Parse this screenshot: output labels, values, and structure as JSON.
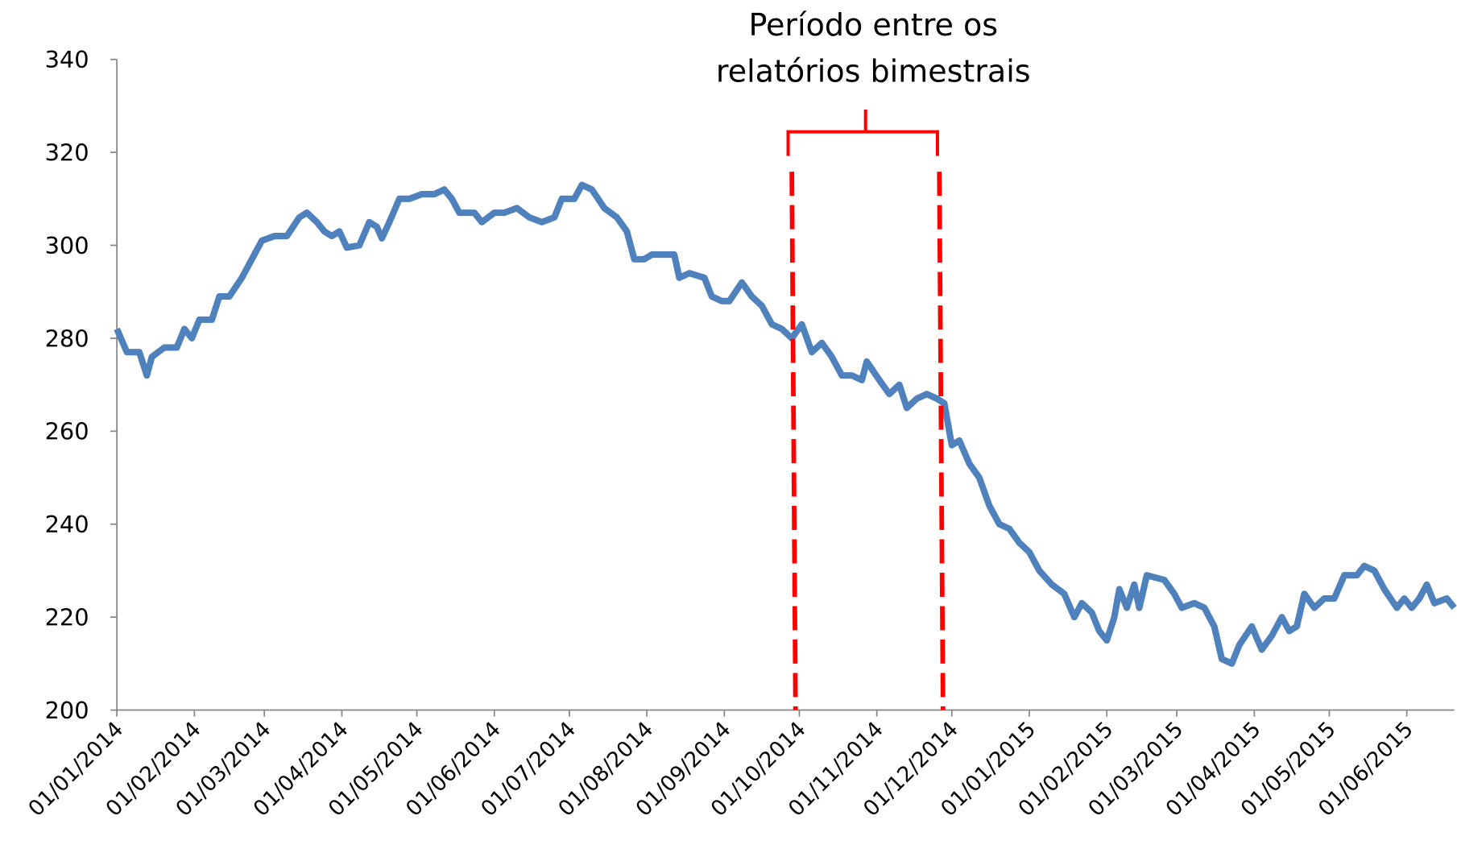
{
  "chart_data": {
    "type": "line",
    "x": [
      "01/01/2014",
      "05/01/2014",
      "10/01/2014",
      "13/01/2014",
      "15/01/2014",
      "20/01/2014",
      "25/01/2014",
      "28/01/2014",
      "31/01/2014",
      "03/02/2014",
      "08/02/2014",
      "11/02/2014",
      "15/02/2014",
      "20/02/2014",
      "25/02/2014",
      "28/02/2014",
      "05/03/2014",
      "10/03/2014",
      "15/03/2014",
      "18/03/2014",
      "22/03/2014",
      "25/03/2014",
      "28/03/2014",
      "31/03/2014",
      "03/04/2014",
      "08/04/2014",
      "12/04/2014",
      "15/04/2014",
      "17/04/2014",
      "20/04/2014",
      "24/04/2014",
      "28/04/2014",
      "03/05/2014",
      "08/05/2014",
      "12/05/2014",
      "15/05/2014",
      "18/05/2014",
      "24/05/2014",
      "27/05/2014",
      "01/06/2014",
      "05/06/2014",
      "10/06/2014",
      "15/06/2014",
      "20/06/2014",
      "25/06/2014",
      "28/06/2014",
      "03/07/2014",
      "06/07/2014",
      "10/07/2014",
      "15/07/2014",
      "20/07/2014",
      "24/07/2014",
      "27/07/2014",
      "31/07/2014",
      "03/08/2014",
      "08/08/2014",
      "12/08/2014",
      "14/08/2014",
      "18/08/2014",
      "24/08/2014",
      "27/08/2014",
      "31/08/2014",
      "03/09/2014",
      "08/09/2014",
      "12/09/2014",
      "16/09/2014",
      "20/09/2014",
      "24/09/2014",
      "28/09/2014",
      "02/10/2014",
      "06/10/2014",
      "10/10/2014",
      "14/10/2014",
      "18/10/2014",
      "22/10/2014",
      "26/10/2014",
      "28/10/2014",
      "02/11/2014",
      "06/11/2014",
      "10/11/2014",
      "13/11/2014",
      "17/11/2014",
      "21/11/2014",
      "25/11/2014",
      "28/11/2014",
      "01/12/2014",
      "04/12/2014",
      "08/12/2014",
      "12/12/2014",
      "16/12/2014",
      "20/12/2014",
      "24/12/2014",
      "28/12/2014",
      "01/01/2015",
      "05/01/2015",
      "10/01/2015",
      "15/01/2015",
      "19/01/2015",
      "22/01/2015",
      "26/01/2015",
      "29/01/2015",
      "01/02/2015",
      "04/02/2015",
      "06/02/2015",
      "09/02/2015",
      "12/02/2015",
      "14/02/2015",
      "17/02/2015",
      "24/02/2015",
      "28/02/2015",
      "03/03/2015",
      "08/03/2015",
      "12/03/2015",
      "16/03/2015",
      "19/03/2015",
      "23/03/2015",
      "26/03/2015",
      "31/03/2015",
      "04/04/2015",
      "08/04/2015",
      "12/04/2015",
      "15/04/2015",
      "18/04/2015",
      "21/04/2015",
      "25/04/2015",
      "29/04/2015",
      "03/05/2015",
      "07/05/2015",
      "10/05/2015",
      "12/05/2015",
      "15/05/2015",
      "19/05/2015",
      "23/05/2015",
      "28/05/2015",
      "31/05/2015",
      "03/06/2015",
      "06/06/2015",
      "09/06/2015",
      "12/06/2015",
      "17/06/2015",
      "20/06/2015"
    ],
    "series": [
      {
        "color": "#4f81bd",
        "values": [
          282,
          277,
          277,
          272,
          276,
          278,
          278,
          282,
          280,
          284,
          284,
          289,
          289,
          293,
          298,
          301,
          302,
          302,
          306,
          307,
          305,
          303,
          302,
          303,
          299.5,
          300,
          305,
          304,
          301.5,
          305,
          310,
          310,
          311,
          311,
          312,
          310,
          307,
          307,
          305,
          307,
          307,
          308,
          306,
          305,
          306,
          310,
          310,
          313,
          312,
          308,
          306,
          303,
          297,
          297,
          298,
          298,
          298,
          293,
          294,
          293,
          289,
          288,
          288,
          292,
          289,
          287,
          283,
          282,
          280,
          283,
          277,
          279,
          276,
          272,
          272,
          271,
          275,
          271,
          268,
          270,
          265,
          267,
          268,
          267,
          266,
          257,
          258,
          253,
          250,
          244,
          240,
          239,
          236,
          234,
          230,
          227,
          225,
          220,
          223,
          221,
          217,
          215,
          220,
          226,
          222,
          227,
          222,
          229,
          228,
          225,
          222,
          223,
          222,
          218,
          211,
          210,
          214,
          218,
          213,
          216,
          220,
          217,
          218,
          225,
          222,
          224,
          224,
          229,
          229,
          229,
          231,
          230,
          226,
          222,
          224,
          222,
          224,
          227,
          223,
          224,
          222
        ]
      }
    ],
    "xlim": [
      "01/01/2014",
      "20/06/2015"
    ],
    "xticks": [
      "01/01/2014",
      "01/02/2014",
      "01/03/2014",
      "01/04/2014",
      "01/05/2014",
      "01/06/2014",
      "01/07/2014",
      "01/08/2014",
      "01/09/2014",
      "01/10/2014",
      "01/11/2014",
      "01/12/2014",
      "01/01/2015",
      "01/02/2015",
      "01/03/2015",
      "01/04/2015",
      "01/05/2015",
      "01/06/2015"
    ],
    "ylim": [
      200,
      340
    ],
    "yticks": [
      200,
      220,
      240,
      260,
      280,
      300,
      320,
      340
    ],
    "annotation": {
      "text": [
        "Período entre os",
        "relatórios bimestrais"
      ],
      "dates": [
        "28/09/2014",
        "26/11/2014"
      ],
      "color": "#ff0000"
    }
  }
}
